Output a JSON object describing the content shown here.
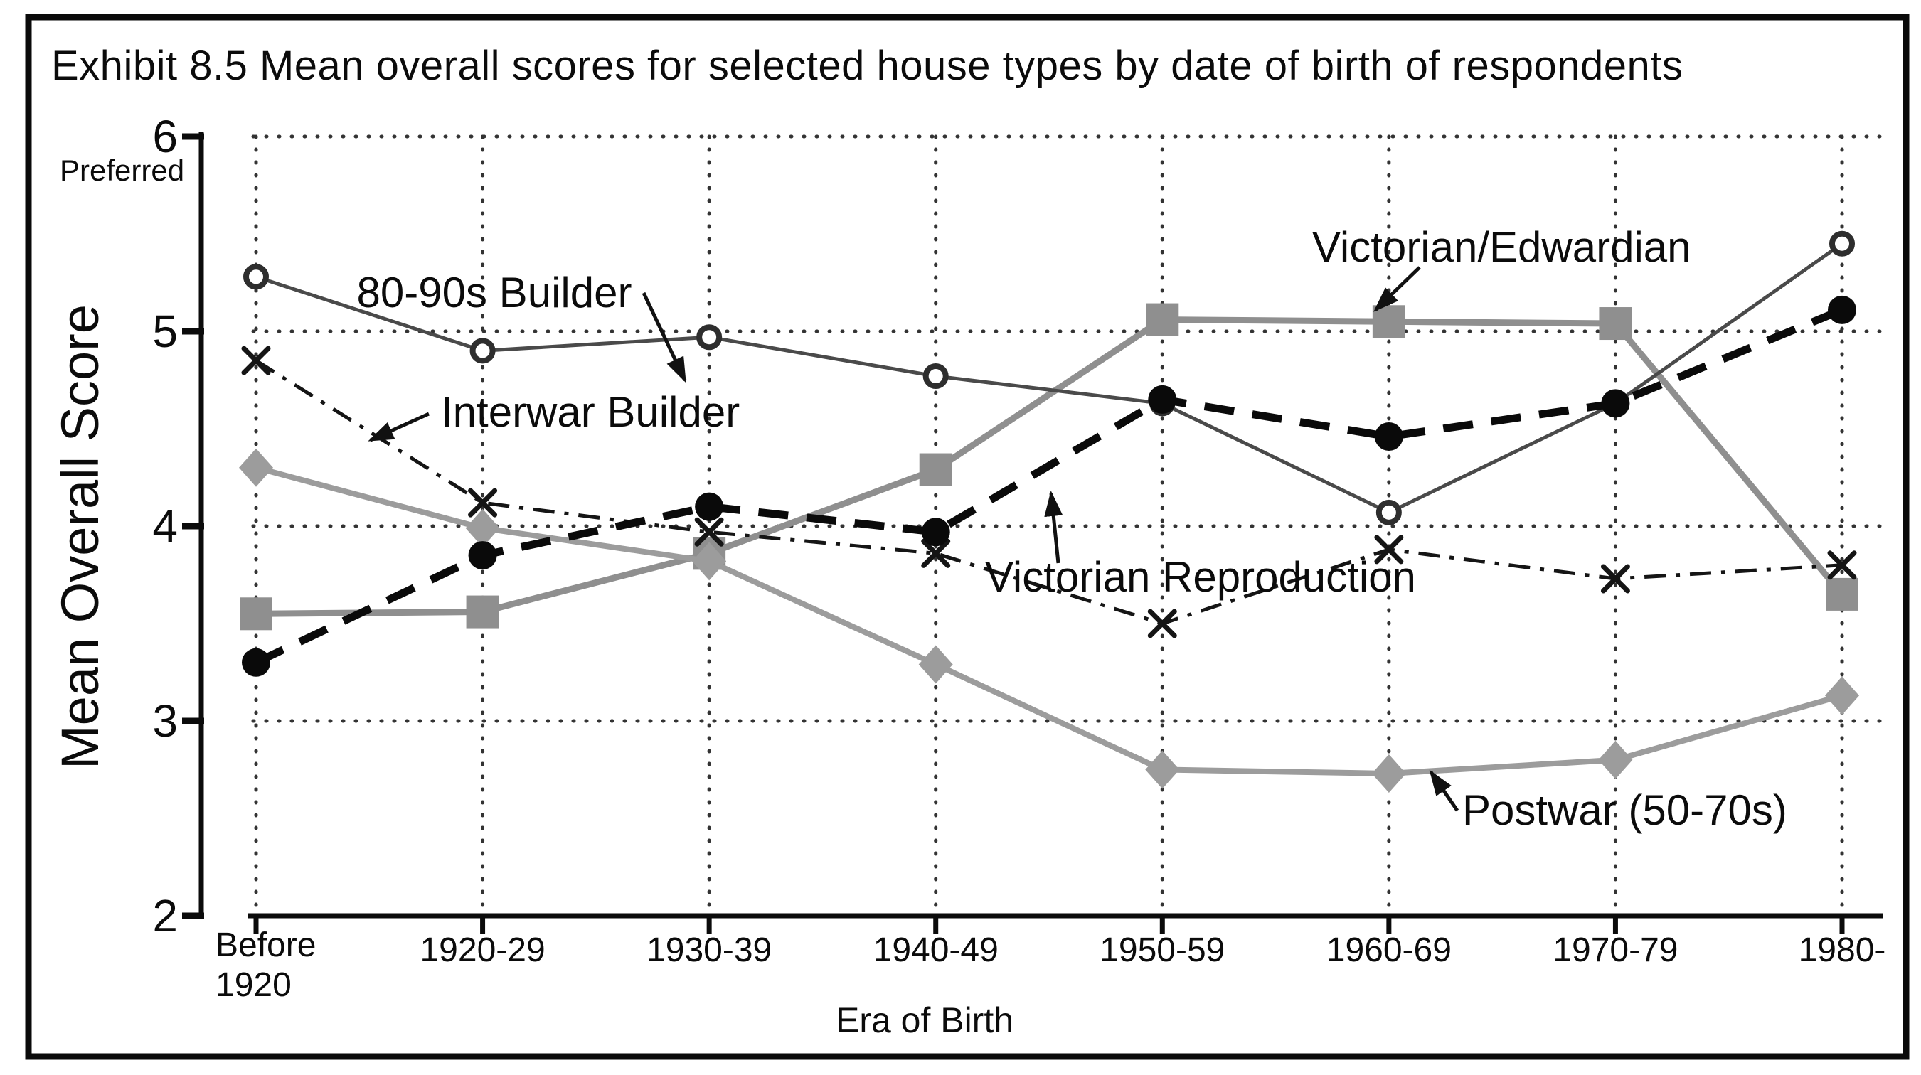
{
  "title": "Exhibit 8.5 Mean overall scores for selected house types by date of birth of respondents",
  "y_axis": {
    "label": "Mean Overall Score",
    "annotation": "Preferred",
    "tick_labels": [
      "6",
      "5",
      "4",
      "3",
      "2"
    ],
    "min": 2,
    "max": 6
  },
  "x_axis": {
    "label": "Era of Birth",
    "first_label_lines": [
      "Before",
      "1920"
    ]
  },
  "chart_data": {
    "type": "line",
    "title": "Exhibit 8.5 Mean overall scores for selected house types by date of birth of respondents",
    "xlabel": "Era of Birth",
    "ylabel": "Mean Overall Score",
    "y_annotation": "Preferred",
    "ylim": [
      2,
      6
    ],
    "yticks": [
      6,
      5,
      4,
      3,
      2
    ],
    "grid": "dotted horizontal at 3,4,5,6 and dotted vertical at every category",
    "legend_position": "none (series labelled by on-chart annotations with arrows)",
    "categories": [
      "Before 1920",
      "1920-29",
      "1930-39",
      "1940-49",
      "1950-59",
      "1960-69",
      "1970-79",
      "1980-"
    ],
    "series": [
      {
        "name": "Victorian/Edwardian",
        "marker": "square",
        "line": "solid",
        "color": "#8f8f8f",
        "line_width": 9,
        "values": [
          3.55,
          3.56,
          3.86,
          4.29,
          5.06,
          5.05,
          5.04,
          3.65
        ],
        "note": "marker at 1930-39 hidden behind Postwar diamond"
      },
      {
        "name": "Postwar (50-70s)",
        "marker": "diamond",
        "line": "solid",
        "color": "#9c9c9c",
        "line_width": 8,
        "values": [
          4.3,
          3.99,
          3.82,
          3.29,
          2.75,
          2.73,
          2.8,
          3.13
        ]
      },
      {
        "name": "Interwar Builder",
        "marker": "x",
        "line": "dashdot",
        "color": "#151515",
        "line_width": 5,
        "values": [
          4.85,
          4.12,
          3.97,
          3.86,
          3.5,
          3.88,
          3.73,
          3.8
        ]
      },
      {
        "name": "80-90s Builder",
        "marker": "open-circle",
        "line": "solid",
        "color": "#4a4a4a",
        "line_width": 5,
        "values": [
          5.28,
          4.9,
          4.97,
          4.77,
          4.63,
          4.07,
          4.63,
          5.45
        ],
        "note": "markers at 1950-59 and 1970-79 hidden behind Victorian Reproduction filled circles"
      },
      {
        "name": "Victorian Reproduction",
        "marker": "filled-circle",
        "line": "dash",
        "color": "#0a0a0a",
        "line_width": 11,
        "values": [
          3.3,
          3.85,
          4.1,
          3.97,
          4.65,
          4.46,
          4.63,
          5.11
        ]
      }
    ],
    "annotations": [
      {
        "text": "80-90s Builder",
        "anchor": "middle",
        "tx": 695,
        "ty": 432,
        "arrow": [
          905,
          412,
          963,
          535
        ],
        "points_to": "80-90s Builder open circle at 1930-39"
      },
      {
        "text": "Interwar Builder",
        "anchor": "start",
        "tx": 620,
        "ty": 600,
        "arrow": [
          603,
          582,
          521,
          619
        ],
        "points_to": "Interwar Builder dash-dot line left of 1920-29"
      },
      {
        "text": "Victorian/Edwardian",
        "anchor": "start",
        "tx": 1845,
        "ty": 368,
        "arrow": [
          1996,
          376,
          1934,
          436
        ],
        "points_to": "Victorian/Edwardian square at 1960-69"
      },
      {
        "text": "Victorian Reproduction",
        "anchor": "start",
        "tx": 1385,
        "ty": 832,
        "arrow": [
          1488,
          792,
          1478,
          694
        ],
        "points_to": "Victorian Reproduction dashed line between 1940-49 and 1950-59"
      },
      {
        "text": "Postwar (50-70s)",
        "anchor": "start",
        "tx": 2056,
        "ty": 1160,
        "arrow": [
          2049,
          1140,
          2012,
          1086
        ],
        "points_to": "Postwar diamond line between 1960-69 and 1970-79"
      }
    ]
  }
}
